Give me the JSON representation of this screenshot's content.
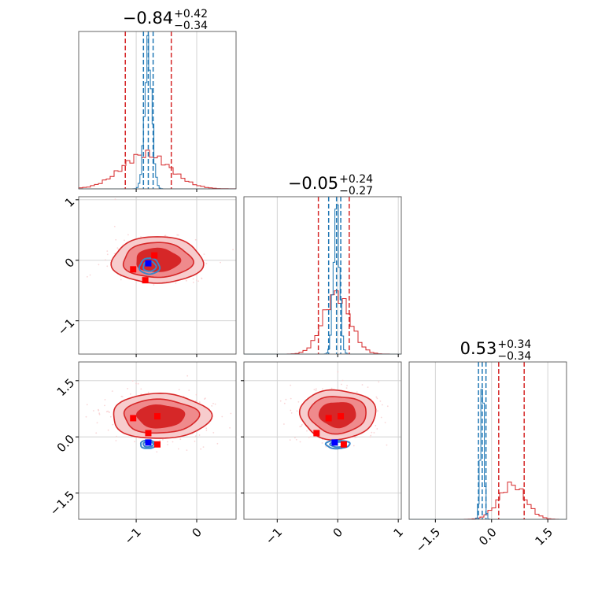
{
  "chart_data": {
    "type": "corner",
    "colors": {
      "red": "#d62728",
      "red_mid": "#ef8a8c",
      "red_light": "#f7cccd",
      "blue": "#1f77b4",
      "blue_contour": "#3b86c8",
      "marker_red": "#ff0000",
      "marker_blue": "#0000ff"
    },
    "parameters": [
      {
        "range": [
          -1.95,
          0.65
        ],
        "ticks": [
          -1,
          0
        ],
        "tick_labels": [
          "−1",
          "0"
        ]
      },
      {
        "range": [
          -1.55,
          1.05
        ],
        "ticks": [
          -1,
          0,
          1
        ],
        "tick_labels": [
          "−1",
          "0",
          "1"
        ]
      },
      {
        "range": [
          -2.2,
          2.0
        ],
        "ticks": [
          -1.5,
          0.0,
          1.5
        ],
        "tick_labels": [
          "−1.5",
          "0.0",
          "1.5"
        ]
      }
    ],
    "titles": [
      {
        "median": "−0.84",
        "plus": "+0.42",
        "minus": "−0.34"
      },
      {
        "median": "−0.05",
        "plus": "+0.24",
        "minus": "−0.27"
      },
      {
        "median": "0.53",
        "plus": "+0.34",
        "minus": "−0.34"
      }
    ],
    "diagonal": [
      {
        "red_quantiles": [
          -1.18,
          -0.84,
          -0.42
        ],
        "blue_quantiles": [
          -0.88,
          -0.8,
          -0.72
        ],
        "red_hist": {
          "mu": -0.84,
          "sigma": 0.4,
          "peak": 0.22
        },
        "blue_hist": {
          "mu": -0.8,
          "sigma": 0.06,
          "peak": 0.88
        }
      },
      {
        "red_quantiles": [
          -0.32,
          -0.05,
          0.19
        ],
        "blue_quantiles": [
          -0.15,
          -0.02,
          0.05
        ],
        "red_hist": {
          "mu": -0.02,
          "sigma": 0.22,
          "peak": 0.38
        },
        "blue_hist": {
          "mu": -0.02,
          "sigma": 0.05,
          "peak": 0.93
        }
      },
      {
        "red_quantiles": [
          0.19,
          0.53,
          0.87
        ],
        "blue_quantiles": [
          -0.35,
          -0.25,
          -0.15
        ],
        "red_hist": {
          "mu": 0.55,
          "sigma": 0.35,
          "peak": 0.22
        },
        "blue_hist": {
          "mu": -0.25,
          "sigma": 0.05,
          "peak": 0.85
        }
      }
    ],
    "pairs": [
      {
        "x_param": 0,
        "y_param": 1,
        "red_center": [
          -0.65,
          0.0
        ],
        "red_spread": [
          0.6,
          0.32
        ],
        "blue_center": [
          -0.78,
          -0.1
        ],
        "blue_spread": [
          0.15,
          0.12
        ],
        "red_markers": [
          [
            -0.7,
            0.08
          ],
          [
            -1.05,
            -0.15
          ],
          [
            -0.85,
            -0.33
          ]
        ],
        "blue_marker": [
          -0.8,
          -0.05
        ]
      },
      {
        "x_param": 0,
        "y_param": 2,
        "red_center": [
          -0.6,
          0.55
        ],
        "red_spread": [
          0.65,
          0.5
        ],
        "blue_center": [
          -0.8,
          -0.2
        ],
        "blue_spread": [
          0.12,
          0.1
        ],
        "red_markers": [
          [
            -1.05,
            0.5
          ],
          [
            -0.65,
            0.55
          ],
          [
            -0.8,
            0.1
          ],
          [
            -0.65,
            -0.2
          ]
        ],
        "blue_marker": [
          -0.8,
          -0.15
        ]
      },
      {
        "x_param": 1,
        "y_param": 2,
        "red_center": [
          0.0,
          0.6
        ],
        "red_spread": [
          0.5,
          0.55
        ],
        "blue_center": [
          0.0,
          -0.2
        ],
        "blue_spread": [
          0.18,
          0.1
        ],
        "red_markers": [
          [
            -0.15,
            0.5
          ],
          [
            0.05,
            0.55
          ],
          [
            -0.35,
            0.1
          ],
          [
            0.1,
            -0.2
          ]
        ],
        "blue_marker": [
          -0.05,
          -0.15
        ]
      }
    ]
  }
}
